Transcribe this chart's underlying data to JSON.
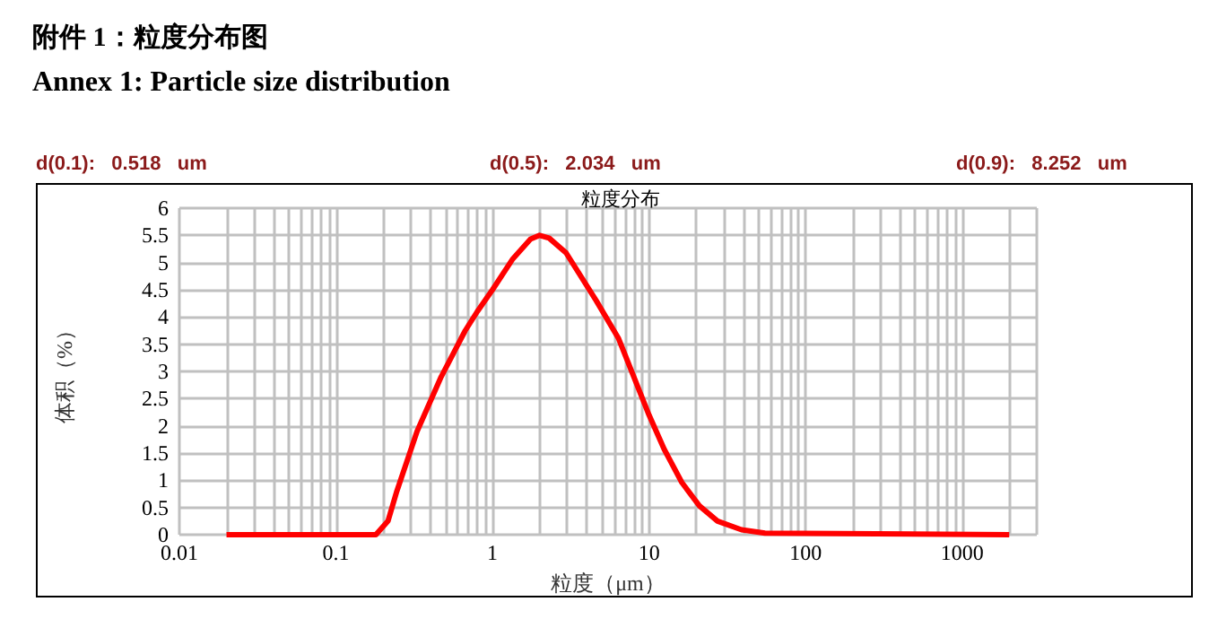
{
  "chart_data": {
    "type": "line",
    "title": "粒度分布",
    "xlabel": "粒度（μm）",
    "ylabel": "体积（%）",
    "annotations": [
      "附件 1：粒度分布图",
      "Annex 1: Particle size distribution",
      "d(0.1):   0.518   um",
      "d(0.5):   2.034   um",
      "d(0.9):   8.252   um"
    ],
    "x": [
      0.02,
      0.18,
      0.215,
      0.245,
      0.33,
      0.47,
      0.67,
      0.8,
      1.0,
      1.35,
      1.75,
      2.0,
      2.3,
      2.95,
      4.6,
      6.4,
      10,
      12.5,
      16.2,
      21,
      27.4,
      39,
      55,
      2000
    ],
    "series": [
      {
        "color": "#ff0000",
        "values": [
          0,
          0,
          0.25,
          0.8,
          1.9,
          2.9,
          3.75,
          4.1,
          4.5,
          5.07,
          5.43,
          5.5,
          5.45,
          5.18,
          4.3,
          3.6,
          2.2,
          1.57,
          0.96,
          0.53,
          0.25,
          0.09,
          0.03,
          0
        ]
      }
    ],
    "xlim": [
      0.01,
      3000
    ],
    "xticks": [
      0.01,
      0.1,
      1,
      10,
      100,
      1000
    ],
    "ylim": [
      0,
      6
    ],
    "yticks": [
      0,
      0.5,
      1,
      1.5,
      2,
      2.5,
      3,
      3.5,
      4,
      4.5,
      5,
      5.5,
      6
    ],
    "log": "x",
    "grid": true,
    "marker": "none",
    "line_style": "solid"
  }
}
